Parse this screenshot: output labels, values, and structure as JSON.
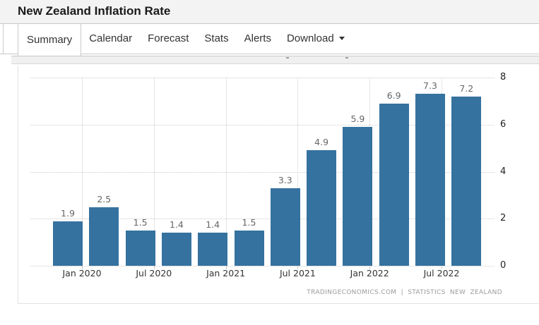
{
  "header": {
    "title": "New Zealand Inflation Rate"
  },
  "tabs": [
    {
      "label": "Summary",
      "active": true
    },
    {
      "label": "Calendar",
      "active": false
    },
    {
      "label": "Forecast",
      "active": false
    },
    {
      "label": "Stats",
      "active": false
    },
    {
      "label": "Alerts",
      "active": false
    },
    {
      "label": "Download",
      "active": false,
      "has_caret": true
    }
  ],
  "chart_data": {
    "type": "bar",
    "title": "New Zealand Inflation Rate",
    "values": [
      1.9,
      2.5,
      1.5,
      1.4,
      1.4,
      1.5,
      3.3,
      4.9,
      5.9,
      6.9,
      7.3,
      7.2
    ],
    "data_labels": [
      "1.9",
      "2.5",
      "1.5",
      "1.4",
      "1.4",
      "1.5",
      "3.3",
      "4.9",
      "5.9",
      "6.9",
      "7.3",
      "7.2"
    ],
    "x_tick_labels": [
      "Jan 2020",
      "Jul 2020",
      "Jan 2021",
      "Jul 2021",
      "Jan 2022",
      "Jul 2022"
    ],
    "bars_per_tick": 2,
    "y_tick_labels": [
      "0",
      "2",
      "4",
      "6",
      "8"
    ],
    "ylim": [
      0,
      8
    ],
    "y_axis_side": "right",
    "grid": "dotted",
    "bar_color": "#35729f",
    "value_label_color": "#666666",
    "source_note": "TRADINGECONOMICS.COM | STATISTICS NEW ZEALAND"
  }
}
